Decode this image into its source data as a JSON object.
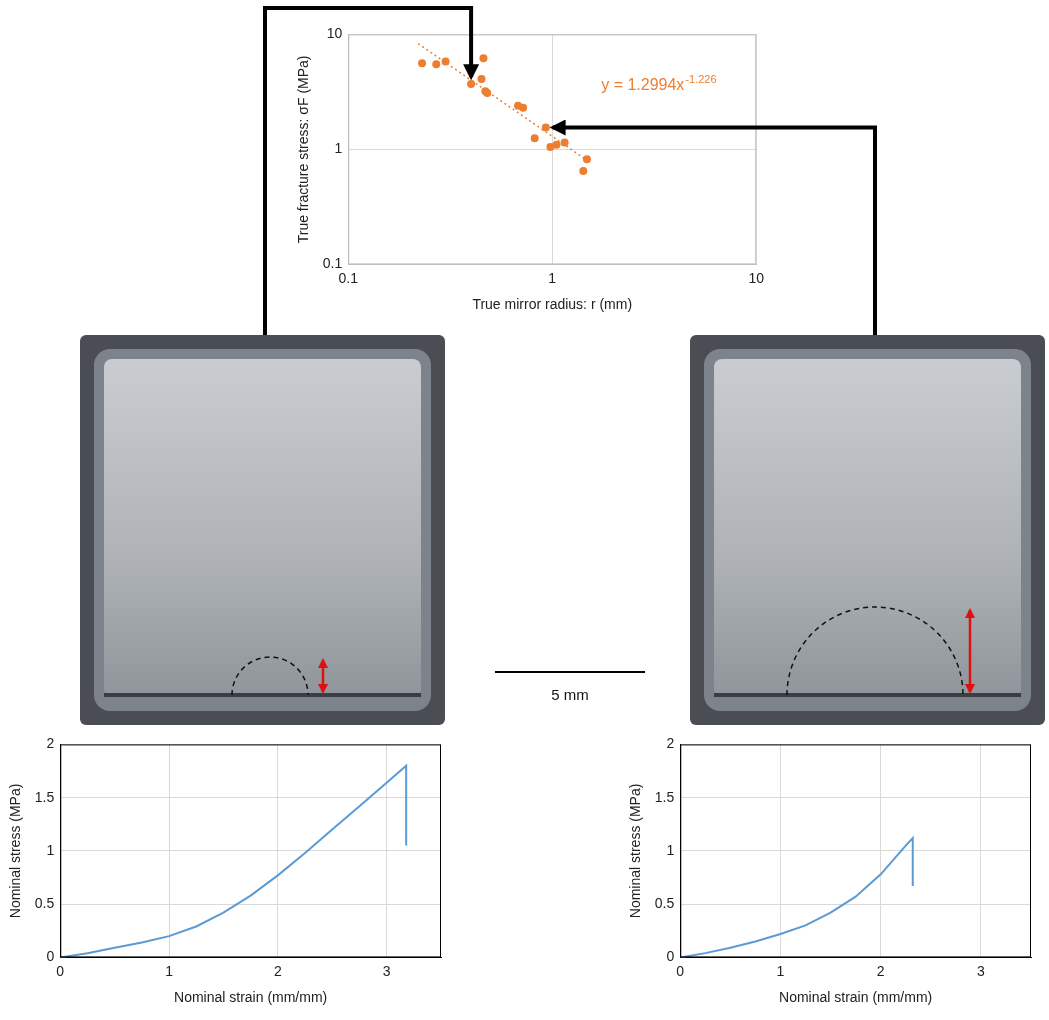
{
  "chart_data": [
    {
      "type": "scatter",
      "log": true,
      "grid": true,
      "x_label": "True mirror radius: r (mm)",
      "y_label": "True fracture stress: σF (MPa)",
      "xlim": [
        0.1,
        10
      ],
      "ylim": [
        0.1,
        10
      ],
      "xticks": [
        0.1,
        1,
        10
      ],
      "yticks": [
        0.1,
        1,
        10
      ],
      "annotation": {
        "text": "y = 1.2994x",
        "superscript": "-1.226"
      },
      "series": [
        {
          "type": "scatter",
          "marker": "circle",
          "color": "#ed7d31",
          "x": [
            0.23,
            0.27,
            0.3,
            0.4,
            0.45,
            0.46,
            0.47,
            0.48,
            0.68,
            0.72,
            0.82,
            0.93,
            0.98,
            1.05,
            1.15,
            1.42,
            1.48
          ],
          "values": [
            5.6,
            5.5,
            5.8,
            3.7,
            4.1,
            6.2,
            3.2,
            3.1,
            2.4,
            2.3,
            1.25,
            1.55,
            1.05,
            1.1,
            1.15,
            0.65,
            0.82
          ]
        },
        {
          "type": "line",
          "line_style": "dotted",
          "color": "#ed7d31",
          "x": [
            0.22,
            1.5
          ],
          "values": [
            8.32,
            0.79
          ]
        }
      ]
    },
    {
      "type": "line",
      "grid": true,
      "x_label": "Nominal strain (mm/mm)",
      "y_label": "Nominal stress (MPa)",
      "xlim": [
        0,
        3.5
      ],
      "ylim": [
        0,
        2
      ],
      "xticks": [
        0,
        1,
        2,
        3
      ],
      "yticks": [
        0,
        0.5,
        1,
        1.5,
        2
      ],
      "series": [
        {
          "color": "#5b9bd5",
          "line_style": "solid",
          "x": [
            0,
            0.25,
            0.5,
            0.75,
            1,
            1.25,
            1.5,
            1.75,
            2,
            2.25,
            2.5,
            2.75,
            3,
            3.18,
            3.18
          ],
          "values": [
            0,
            0.04,
            0.09,
            0.14,
            0.2,
            0.29,
            0.42,
            0.58,
            0.77,
            0.98,
            1.2,
            1.42,
            1.64,
            1.8,
            1.05
          ]
        }
      ]
    },
    {
      "type": "line",
      "grid": true,
      "x_label": "Nominal strain (mm/mm)",
      "y_label": "Nominal stress (MPa)",
      "xlim": [
        0,
        3.5
      ],
      "ylim": [
        0,
        2
      ],
      "xticks": [
        0,
        1,
        2,
        3
      ],
      "yticks": [
        0,
        0.5,
        1,
        1.5,
        2
      ],
      "series": [
        {
          "color": "#5b9bd5",
          "line_style": "solid",
          "x": [
            0,
            0.25,
            0.5,
            0.75,
            1,
            1.25,
            1.5,
            1.75,
            2,
            2.25,
            2.32,
            2.32
          ],
          "values": [
            0,
            0.04,
            0.09,
            0.15,
            0.22,
            0.3,
            0.42,
            0.57,
            0.78,
            1.05,
            1.12,
            0.67
          ]
        }
      ]
    }
  ],
  "scale_bar_label": "5 mm"
}
